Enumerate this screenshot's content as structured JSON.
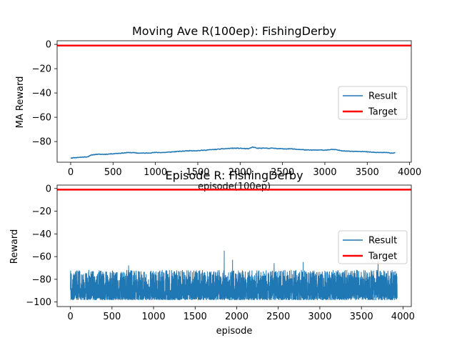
{
  "chart_data": [
    {
      "type": "line",
      "title": "Moving Ave R(100ep): FishingDerby",
      "xlabel": "episode(100ep)",
      "ylabel": "MA Reward",
      "xlim": [
        -160,
        4020
      ],
      "ylim": [
        -97,
        3
      ],
      "xticks": [
        "0",
        "500",
        "1000",
        "1500",
        "2000",
        "2500",
        "3000",
        "3500",
        "4000"
      ],
      "yticks": [
        "0",
        "−20",
        "−40",
        "−60",
        "−80"
      ],
      "legend_position": "center-right",
      "series": [
        {
          "name": "Result",
          "color": "#1f77b4",
          "x": [
            0,
            100,
            200,
            250,
            300,
            400,
            500,
            600,
            700,
            800,
            900,
            1000,
            1100,
            1200,
            1300,
            1400,
            1500,
            1600,
            1700,
            1800,
            1900,
            2000,
            2100,
            2150,
            2200,
            2300,
            2400,
            2500,
            2600,
            2700,
            2800,
            2900,
            3000,
            3100,
            3200,
            3300,
            3400,
            3500,
            3600,
            3700,
            3800,
            3830
          ],
          "y": [
            -93.5,
            -93,
            -92.5,
            -91,
            -90.5,
            -90.5,
            -90,
            -89.5,
            -89,
            -89.5,
            -89.5,
            -89,
            -89,
            -88.5,
            -88,
            -87.5,
            -87.5,
            -87,
            -86.5,
            -86,
            -85.5,
            -85.5,
            -86,
            -84.5,
            -85.5,
            -85.5,
            -85.5,
            -86,
            -86,
            -86.5,
            -87,
            -87,
            -87,
            -86.5,
            -87.5,
            -88,
            -88,
            -88.5,
            -89,
            -89,
            -89.5,
            -89
          ]
        },
        {
          "name": "Target",
          "color": "#ff0000",
          "x": [
            -160,
            4020
          ],
          "y": [
            -1,
            -1
          ]
        }
      ]
    },
    {
      "type": "line",
      "title": "Episode R: FishingDerby",
      "xlabel": "episode",
      "ylabel": "Reward",
      "xlim": [
        -160,
        4100
      ],
      "ylim": [
        -104,
        3
      ],
      "xticks": [
        "0",
        "500",
        "1000",
        "1500",
        "2000",
        "2500",
        "3000",
        "3500",
        "4000"
      ],
      "yticks": [
        "0",
        "−20",
        "−40",
        "−60",
        "−80",
        "−100"
      ],
      "legend_position": "center-right",
      "series": [
        {
          "name": "Result",
          "color": "#1f77b4",
          "x_range": [
            0,
            3930
          ],
          "y_range": [
            -99,
            -55
          ],
          "typical_range": [
            -98,
            -72
          ],
          "notable_peaks": [
            [
              1850,
              -55
            ],
            [
              1950,
              -63
            ],
            [
              700,
              -68
            ],
            [
              2450,
              -66
            ],
            [
              3700,
              -64
            ],
            [
              2800,
              -65
            ]
          ]
        },
        {
          "name": "Target",
          "color": "#ff0000",
          "x": [
            -160,
            4100
          ],
          "y": [
            -1,
            -1
          ]
        }
      ]
    }
  ]
}
